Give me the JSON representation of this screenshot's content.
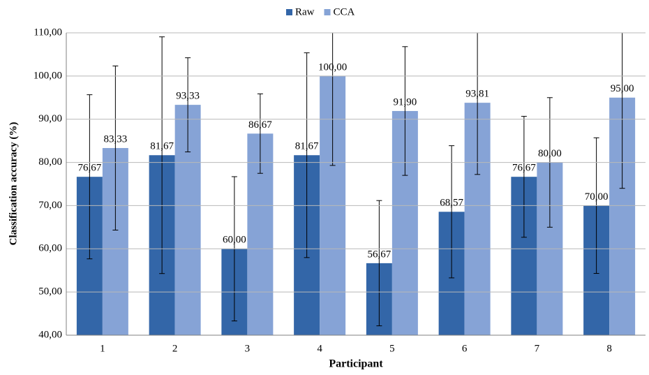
{
  "chart_data": {
    "type": "bar",
    "xlabel": "Participant",
    "ylabel": "Classification accuracy (%)",
    "categories": [
      "1",
      "2",
      "3",
      "4",
      "5",
      "6",
      "7",
      "8"
    ],
    "series": [
      {
        "name": "Raw",
        "color": "#3366a8",
        "values": [
          76.67,
          81.67,
          60.0,
          81.67,
          56.67,
          68.57,
          76.67,
          70.0
        ],
        "value_labels": [
          "76,67",
          "81,67",
          "60,00",
          "81,67",
          "56,67",
          "68,57",
          "76,67",
          "70,00"
        ],
        "errors": [
          19,
          27.4,
          16.7,
          23.7,
          14.5,
          15.3,
          14,
          15.7
        ]
      },
      {
        "name": "CCA",
        "color": "#86a3d6",
        "values": [
          83.33,
          93.33,
          86.67,
          100.0,
          91.9,
          93.81,
          80.0,
          95.0
        ],
        "value_labels": [
          "83,33",
          "93,33",
          "86,67",
          "100,00",
          "91,90",
          "93,81",
          "80,00",
          "95,00"
        ],
        "errors": [
          19,
          10.9,
          9.2,
          20.7,
          14.9,
          16.6,
          15,
          21
        ]
      }
    ],
    "ylim": [
      40,
      110
    ],
    "yticks": [
      {
        "value": 40,
        "label": "40,00"
      },
      {
        "value": 50,
        "label": "50,00"
      },
      {
        "value": 60,
        "label": "60,00"
      },
      {
        "value": 70,
        "label": "70,00"
      },
      {
        "value": 80,
        "label": "80,00"
      },
      {
        "value": 90,
        "label": "90,00"
      },
      {
        "value": 100,
        "label": "100,00"
      },
      {
        "value": 110,
        "label": "110,00"
      }
    ],
    "grid": true,
    "legend": "top"
  }
}
